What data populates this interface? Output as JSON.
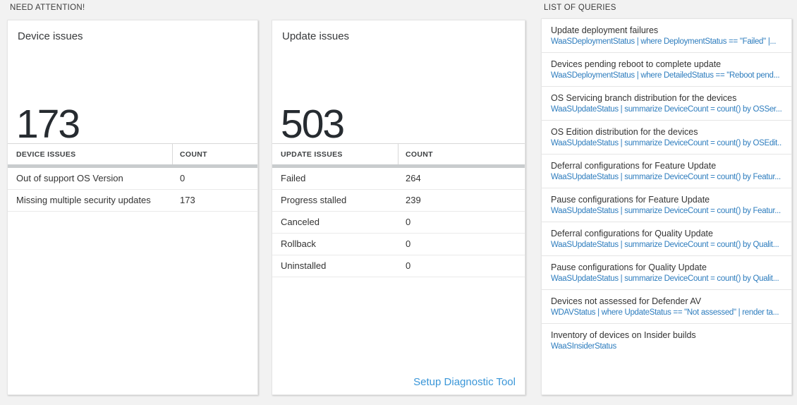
{
  "header": {
    "need_attention_label": "NEED ATTENTION!",
    "list_of_queries_label": "LIST OF QUERIES"
  },
  "colors": {
    "page_background": "#f2f2f2",
    "card_background": "#ffffff",
    "query_text_blue": "#2e7dbe",
    "setup_link_blue": "#3a96d8",
    "big_number_color": "#262b30",
    "grid_scrollbar_gray": "#c9ccce"
  },
  "device_card": {
    "title": "Device issues",
    "count": "173",
    "table": {
      "col1_header": "DEVICE ISSUES",
      "col2_header": "COUNT",
      "rows": [
        {
          "label": "Out of support OS Version",
          "count": "0"
        },
        {
          "label": "Missing multiple security updates",
          "count": "173"
        }
      ]
    }
  },
  "update_card": {
    "title": "Update issues",
    "count": "503",
    "table": {
      "col1_header": "UPDATE ISSUES",
      "col2_header": "COUNT",
      "rows": [
        {
          "label": "Failed",
          "count": "264"
        },
        {
          "label": "Progress stalled",
          "count": "239"
        },
        {
          "label": "Canceled",
          "count": "0"
        },
        {
          "label": "Rollback",
          "count": "0"
        },
        {
          "label": "Uninstalled",
          "count": "0"
        }
      ]
    },
    "setup_link_label": "Setup Diagnostic Tool"
  },
  "queries_panel": {
    "items": [
      {
        "title": "Update deployment failures",
        "query": "WaaSDeploymentStatus | where DeploymentStatus == \"Failed\" |..."
      },
      {
        "title": "Devices pending reboot to complete update",
        "query": "WaaSDeploymentStatus | where DetailedStatus == \"Reboot pend..."
      },
      {
        "title": "OS Servicing branch distribution for the devices",
        "query": "WaaSUpdateStatus | summarize DeviceCount = count() by OSSer..."
      },
      {
        "title": "OS Edition distribution for the devices",
        "query": "WaaSUpdateStatus | summarize DeviceCount = count() by OSEdit..."
      },
      {
        "title": "Deferral configurations for Feature Update",
        "query": "WaaSUpdateStatus | summarize DeviceCount = count() by Featur..."
      },
      {
        "title": "Pause configurations for Feature Update",
        "query": "WaaSUpdateStatus | summarize DeviceCount = count() by Featur..."
      },
      {
        "title": "Deferral configurations for Quality Update",
        "query": "WaaSUpdateStatus | summarize DeviceCount = count() by Qualit..."
      },
      {
        "title": "Pause configurations for Quality Update",
        "query": "WaaSUpdateStatus | summarize DeviceCount = count() by Qualit..."
      },
      {
        "title": "Devices not assessed for Defender AV",
        "query": "WDAVStatus | where UpdateStatus == \"Not assessed\" | render ta..."
      },
      {
        "title": "Inventory of devices on Insider builds",
        "query": "WaaSInsiderStatus"
      }
    ]
  }
}
